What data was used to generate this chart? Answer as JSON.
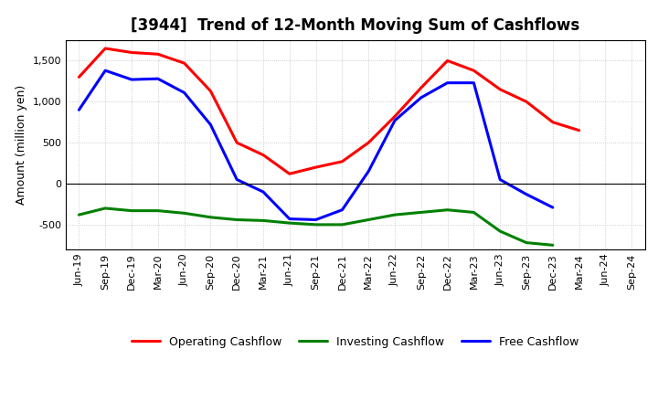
{
  "title": "[3944]  Trend of 12-Month Moving Sum of Cashflows",
  "ylabel": "Amount (million yen)",
  "x_labels": [
    "Jun-19",
    "Sep-19",
    "Dec-19",
    "Mar-20",
    "Jun-20",
    "Sep-20",
    "Dec-20",
    "Mar-21",
    "Jun-21",
    "Sep-21",
    "Dec-21",
    "Mar-22",
    "Jun-22",
    "Sep-22",
    "Dec-22",
    "Mar-23",
    "Jun-23",
    "Sep-23",
    "Dec-23",
    "Mar-24",
    "Jun-24",
    "Sep-24"
  ],
  "operating": [
    1300,
    1650,
    1600,
    1580,
    1470,
    1130,
    500,
    350,
    120,
    200,
    270,
    500,
    820,
    1170,
    1500,
    1380,
    1150,
    1000,
    750,
    650,
    null,
    null
  ],
  "investing": [
    -380,
    -300,
    -330,
    -330,
    -360,
    -410,
    -440,
    -450,
    -480,
    -500,
    -500,
    -440,
    -380,
    -350,
    -320,
    -350,
    -580,
    -720,
    -750,
    null,
    null,
    null
  ],
  "free": [
    900,
    1380,
    1270,
    1280,
    1110,
    720,
    50,
    -100,
    -430,
    -440,
    -320,
    150,
    770,
    1050,
    1230,
    1230,
    50,
    -130,
    -290,
    null,
    null,
    null
  ],
  "operating_color": "#ff0000",
  "investing_color": "#008000",
  "free_color": "#0000ff",
  "ylim": [
    -800,
    1750
  ],
  "yticks": [
    -500,
    0,
    500,
    1000,
    1500
  ],
  "legend_labels": [
    "Operating Cashflow",
    "Investing Cashflow",
    "Free Cashflow"
  ],
  "background_color": "#ffffff",
  "grid_color": "#b0b0b0",
  "linewidth": 2.2,
  "title_fontsize": 12,
  "ylabel_fontsize": 9,
  "tick_fontsize": 8,
  "legend_fontsize": 9
}
